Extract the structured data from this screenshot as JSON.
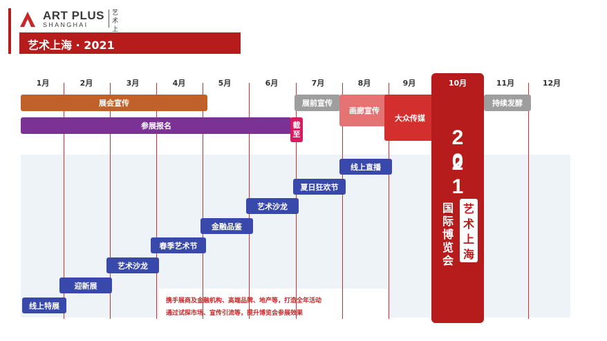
{
  "brand": {
    "name": "ART PLUS",
    "sub": "SHANGHAI",
    "cn": "艺术上海"
  },
  "title": "艺术上海 · 2021",
  "months": [
    "1月",
    "2月",
    "3月",
    "4月",
    "5月",
    "6月",
    "7月",
    "8月",
    "9月",
    "10月",
    "11月",
    "12月"
  ],
  "bars": {
    "exhibition_promo": "展会宣传",
    "pre_show_promo": "展前宣传",
    "gallery_promo": "画廊宣传",
    "mass_media": "大众传媒",
    "ongoing": "持续发酵",
    "registration": "参展报名",
    "deadline": "截至"
  },
  "events": [
    "线上直播",
    "夏日狂欢节",
    "艺术沙龙",
    "金融品鉴",
    "春季艺术节",
    "艺术沙龙",
    "迎新展",
    "线上特展"
  ],
  "notes": [
    "携手展商及金融机构、高端品牌、地产等，打造全年活动",
    "通过试探市场、宣传引流等，提升博览会参展效果"
  ],
  "fair": {
    "year_top": "2 0",
    "year_bottom": "2 1",
    "label": "国际博览会",
    "name": "艺术上海"
  },
  "colors": {
    "brand_red": "#b71c1c",
    "orange": "#c0612b",
    "purple": "#7b3294",
    "gray": "#9e9e9e",
    "pink": "#e57373",
    "event_blue": "#3949ab"
  }
}
